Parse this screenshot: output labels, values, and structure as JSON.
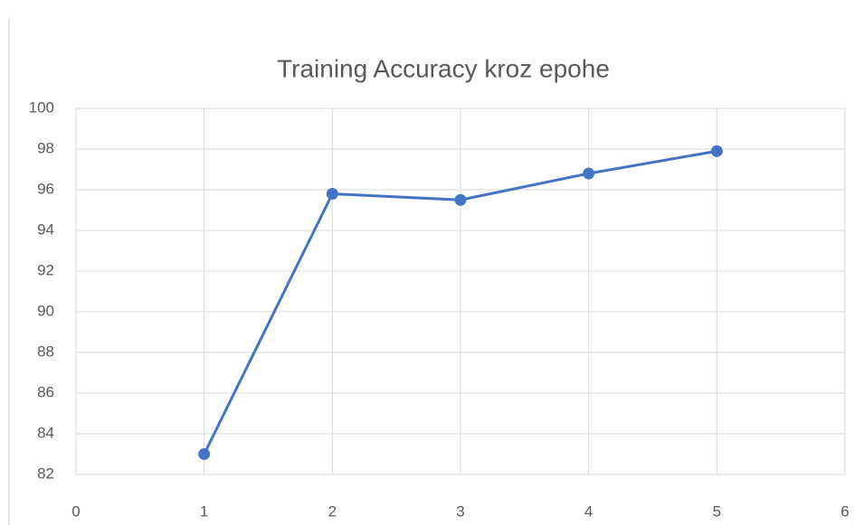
{
  "chart_data": {
    "type": "line",
    "title": "Training Accuracy kroz epohe",
    "x": [
      1,
      2,
      3,
      4,
      5
    ],
    "values": [
      83,
      95.8,
      95.5,
      96.8,
      97.9
    ],
    "color": "#4472c4",
    "xlim": [
      0,
      6
    ],
    "xticks": [
      0,
      1,
      2,
      3,
      4,
      5,
      6
    ],
    "ylim": [
      82,
      100
    ],
    "yticks": [
      82,
      84,
      86,
      88,
      90,
      92,
      94,
      96,
      98,
      100
    ],
    "grid": true
  }
}
